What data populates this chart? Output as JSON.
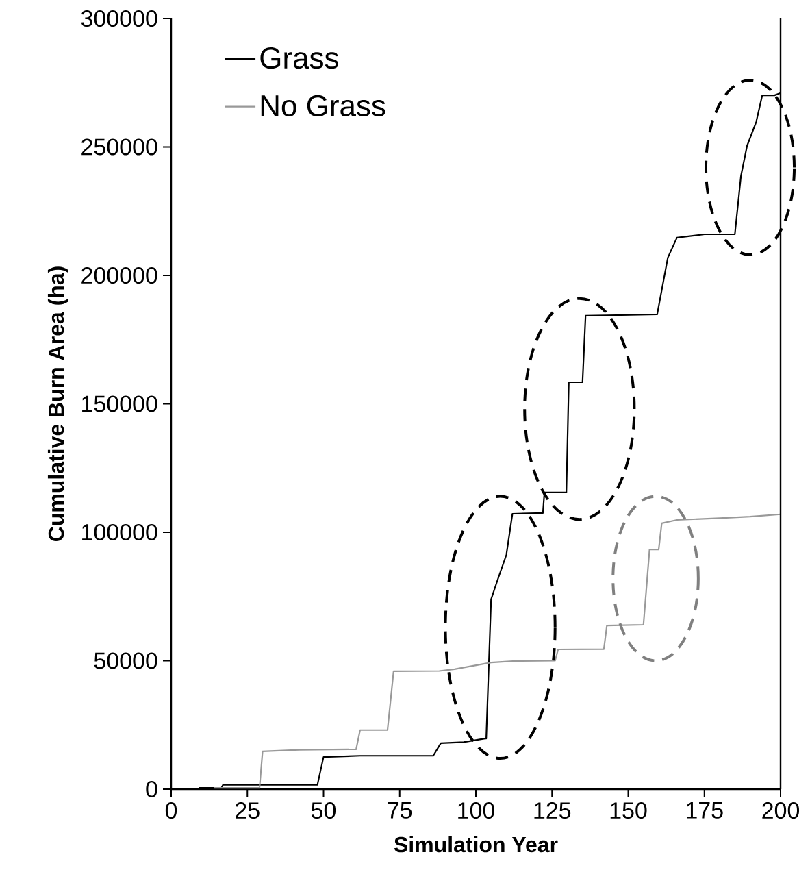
{
  "chart_data": {
    "type": "line",
    "xlabel": "Simulation Year",
    "ylabel": "Cumulative Burn Area (ha)",
    "xlim": [
      0,
      200
    ],
    "ylim": [
      0,
      300000
    ],
    "xticks": [
      0,
      25,
      50,
      75,
      100,
      125,
      150,
      175,
      200
    ],
    "yticks": [
      0,
      50000,
      100000,
      150000,
      200000,
      250000,
      300000
    ],
    "legend": "top left",
    "grid": false,
    "marker": "none",
    "line_style": "solid",
    "series": [
      {
        "name": "Grass",
        "color": "#000000",
        "x": [
          9,
          16.5,
          17,
          48,
          50,
          62,
          86,
          88.5,
          96,
          103,
          103.4,
          105,
          107,
          110,
          112,
          122,
          122.5,
          129.7,
          130.5,
          135,
          136,
          159.5,
          163,
          166,
          175,
          185,
          187,
          189,
          192,
          194,
          198,
          200
        ],
        "values": [
          500,
          500,
          1700,
          1700,
          12500,
          13000,
          13000,
          17900,
          18300,
          19700,
          19700,
          73900,
          81000,
          91200,
          107200,
          107500,
          115500,
          115500,
          158400,
          158400,
          184300,
          184800,
          206900,
          214700,
          216000,
          216000,
          238700,
          250400,
          259700,
          270100,
          270100,
          271000
        ]
      },
      {
        "name": "No Grass",
        "color": "#999999",
        "x": [
          14,
          29,
          30,
          42,
          60.7,
          62,
          71,
          73,
          88,
          93,
          105,
          113,
          126,
          127,
          142,
          143,
          155,
          157,
          160,
          161,
          166,
          180,
          190,
          200
        ],
        "values": [
          500,
          500,
          14700,
          15300,
          15500,
          23000,
          23000,
          45900,
          46000,
          46700,
          49300,
          49900,
          50000,
          54400,
          54500,
          63700,
          64000,
          93300,
          93300,
          103500,
          104800,
          105500,
          106100,
          107000
        ]
      }
    ]
  }
}
